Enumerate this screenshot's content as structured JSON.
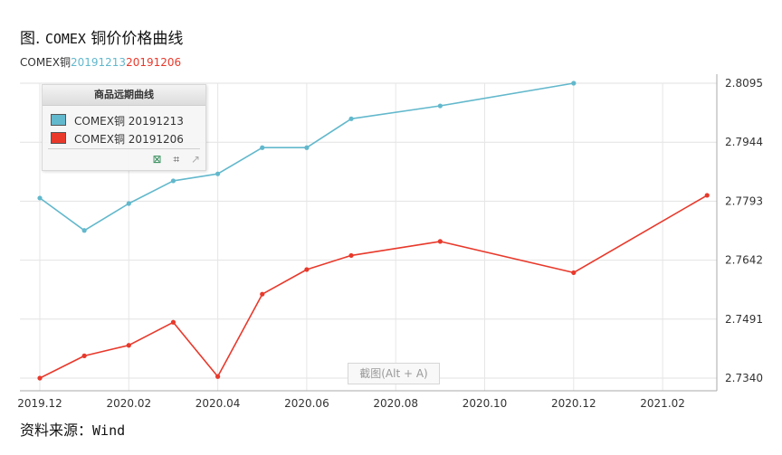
{
  "figure": {
    "title_prefix": "图.",
    "title_latin": "COMEX",
    "title_suffix": "铜价价格曲线",
    "subtitle_prefix": "COMEX铜",
    "subtitle_date1": "20191213",
    "subtitle_date2": "20191206",
    "source_label": "资料来源：",
    "source_value": "Wind",
    "screenshot_hint": "截图(Alt + A)"
  },
  "legend": {
    "header": "商品远期曲线",
    "items": [
      {
        "label": "COMEX铜 20191213",
        "color": "#62b8cc"
      },
      {
        "label": "COMEX铜 20191206",
        "color": "#e8392b"
      }
    ],
    "tools": [
      "excel-icon",
      "crop-icon",
      "chart-icon"
    ]
  },
  "chart_data": {
    "type": "line",
    "x_dates": [
      "2019-12",
      "2020-01",
      "2020-02",
      "2020-03",
      "2020-04",
      "2020-05",
      "2020-06",
      "2020-07",
      "2020-09",
      "2020-12",
      "2021-03"
    ],
    "x_ticks": [
      "2019.12",
      "2020.02",
      "2020.04",
      "2020.06",
      "2020.08",
      "2020.10",
      "2020.12",
      "2021.02"
    ],
    "y_ticks": [
      "2.8095",
      "2.7944",
      "2.7793",
      "2.7642",
      "2.7491",
      "2.7340"
    ],
    "ylim": [
      2.734,
      2.8095
    ],
    "grid": true,
    "legend_position": "top-left",
    "series": [
      {
        "name": "COMEX铜 20191213",
        "color": "#62b8cc",
        "values": [
          2.7801,
          2.7718,
          2.7787,
          2.7845,
          2.7863,
          2.793,
          2.793,
          2.8004,
          2.8037,
          2.8095,
          null
        ]
      },
      {
        "name": "COMEX铜 20191206",
        "color": "#e8392b",
        "values": [
          2.734,
          2.7397,
          2.7424,
          2.7483,
          2.7344,
          2.7555,
          2.7618,
          2.7654,
          2.769,
          2.761,
          2.7808
        ]
      }
    ]
  }
}
